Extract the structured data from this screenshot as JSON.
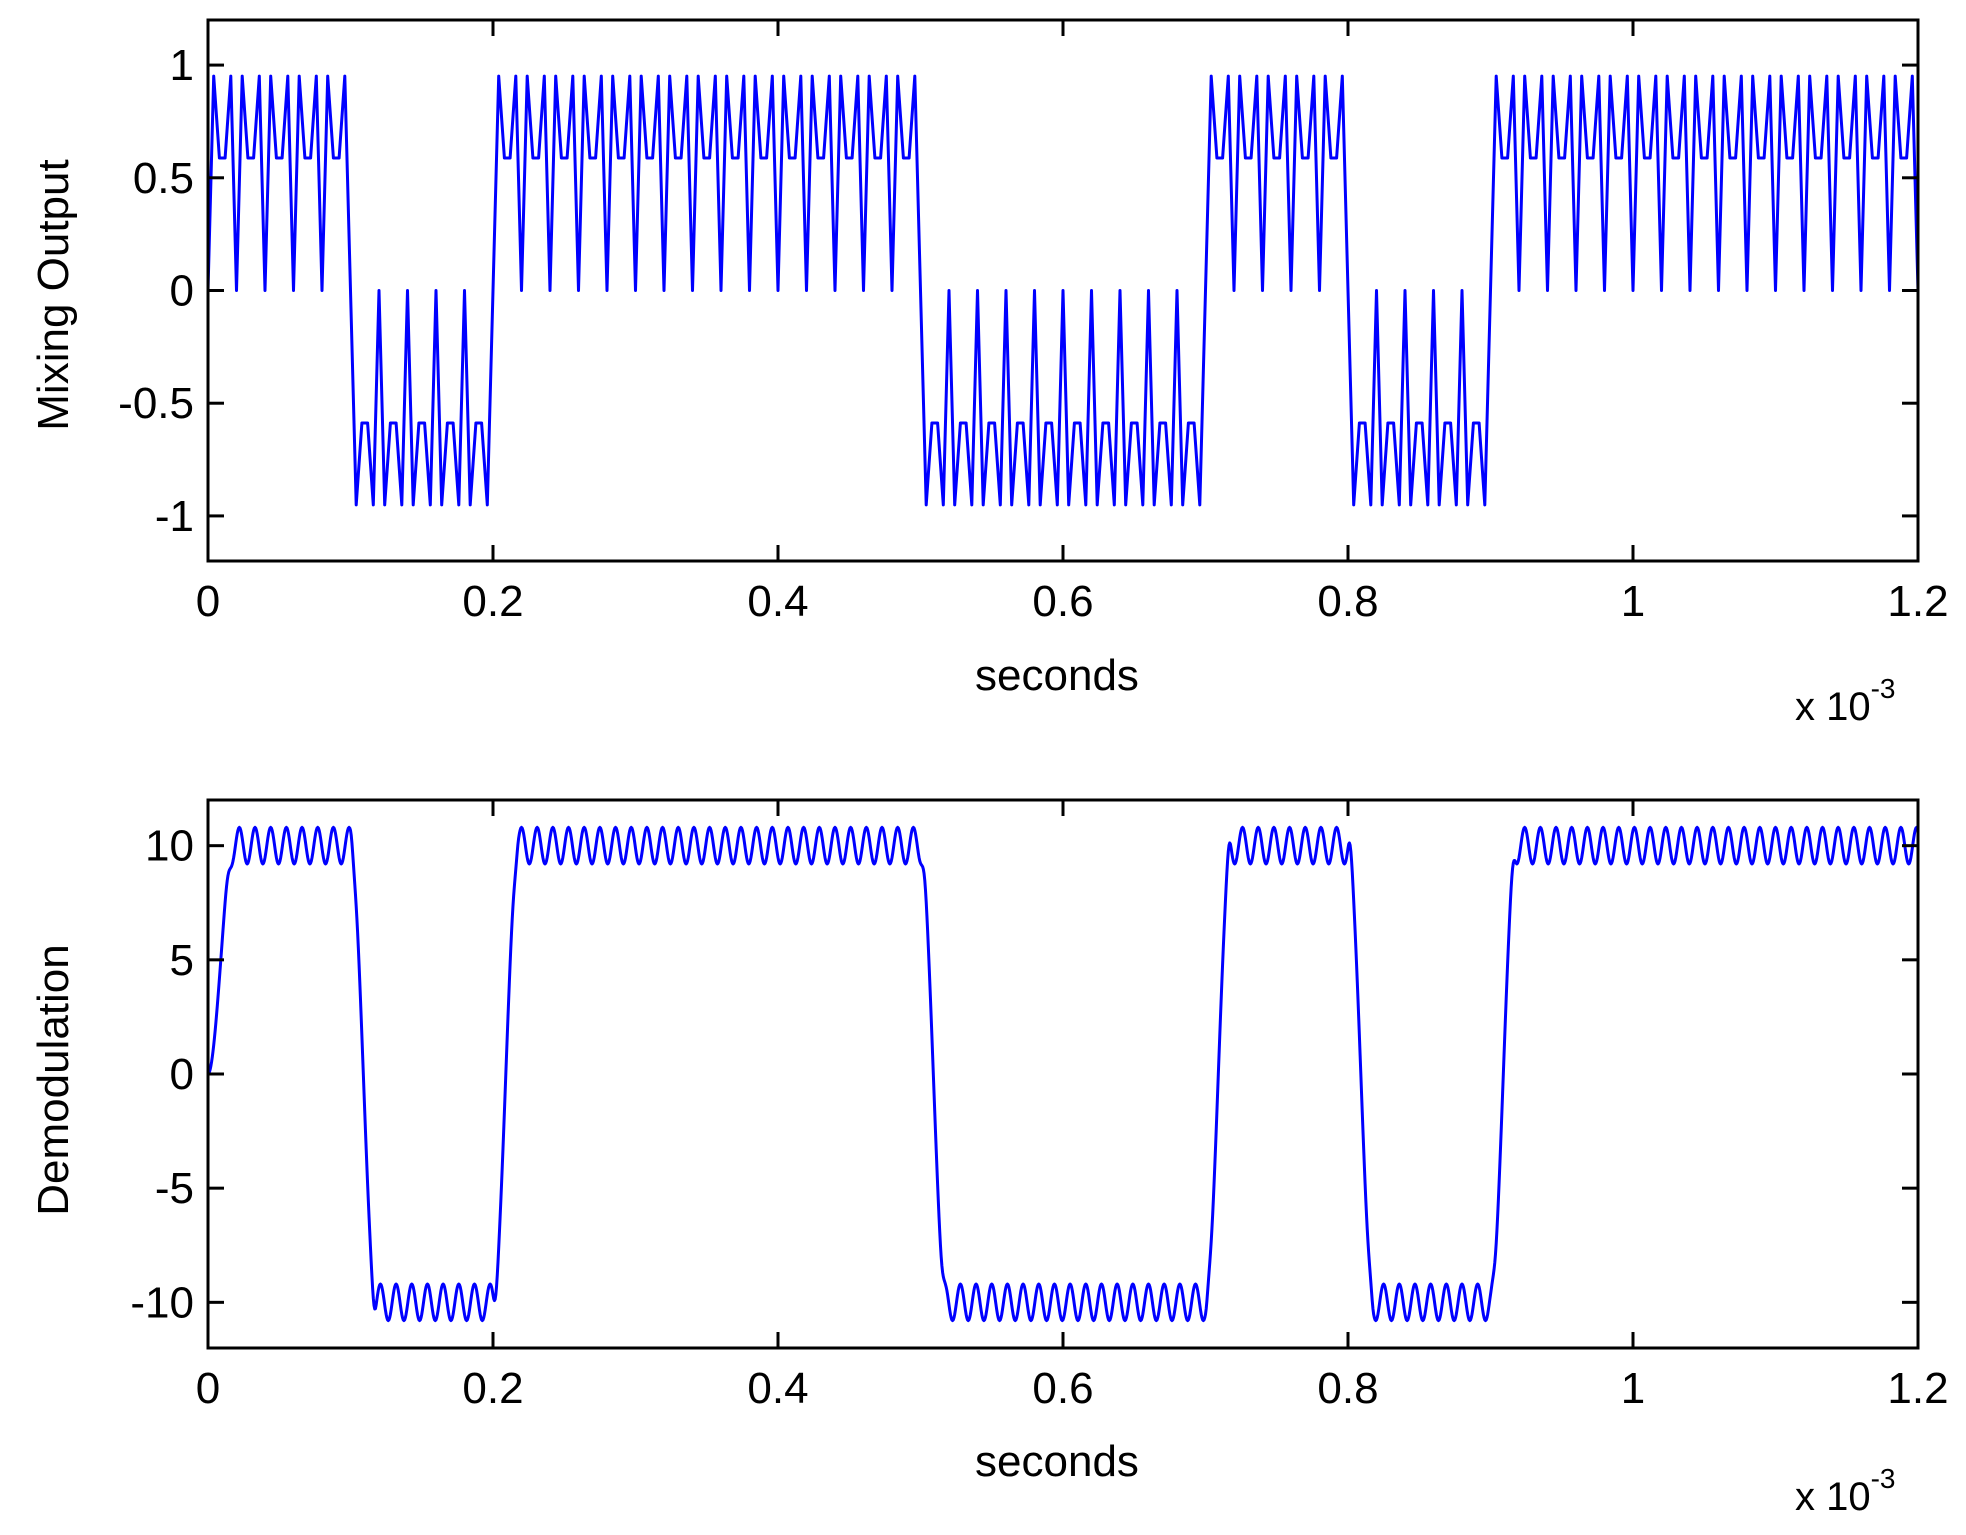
{
  "chart_data": [
    {
      "type": "line",
      "xlabel": "seconds",
      "ylabel": "Mixing Output",
      "x_multiplier": {
        "base": "x 10",
        "exponent": "-3"
      },
      "xlim": [
        0,
        0.0012
      ],
      "ylim": [
        -1.2,
        1.2
      ],
      "grid": false,
      "x_ticks": [
        0,
        0.0002,
        0.0004,
        0.0006,
        0.0008,
        0.001,
        0.0012
      ],
      "x_tick_labels": [
        "0",
        "0.2",
        "0.4",
        "0.6",
        "0.8",
        "1",
        "1.2"
      ],
      "y_ticks": [
        1,
        0.5,
        0,
        -0.5,
        -1
      ],
      "y_tick_labels": [
        "1",
        "0.5",
        "0",
        "-0.5",
        "-1"
      ],
      "color": "#0000ff",
      "signal": {
        "bits": [
          1,
          0,
          1,
          1,
          1,
          0,
          0,
          1,
          0,
          1,
          1,
          1
        ],
        "bit_period": 0.0001,
        "carrier_hz": 50000,
        "sample_rate_hz": 250000,
        "envelope_rise": 0,
        "ripple_amplitude": 0,
        "formula": "positive bit: |sin(2*pi*fc*t)|, negative bit: -|sin(2*pi*fc*t)|"
      }
    },
    {
      "type": "line",
      "xlabel": "seconds",
      "ylabel": "Demodulation",
      "x_multiplier": {
        "base": "x 10",
        "exponent": "-3"
      },
      "xlim": [
        0,
        0.0012
      ],
      "ylim": [
        -12,
        12
      ],
      "grid": false,
      "x_ticks": [
        0,
        0.0002,
        0.0004,
        0.0006,
        0.0008,
        0.001,
        0.0012
      ],
      "x_tick_labels": [
        "0",
        "0.2",
        "0.4",
        "0.6",
        "0.8",
        "1",
        "1.2"
      ],
      "y_ticks": [
        10,
        5,
        0,
        -5,
        -10
      ],
      "y_tick_labels": [
        "10",
        "5",
        "0",
        "-5",
        "-10"
      ],
      "color": "#0000ff",
      "signal": {
        "bits": [
          1,
          0,
          1,
          1,
          1,
          0,
          0,
          1,
          0,
          1,
          1,
          1
        ],
        "level": 10,
        "ripple_amplitude": 0.8,
        "ripple_period": 1.1e-05,
        "transition_width": 1.8e-05,
        "start_value": 0
      }
    }
  ]
}
